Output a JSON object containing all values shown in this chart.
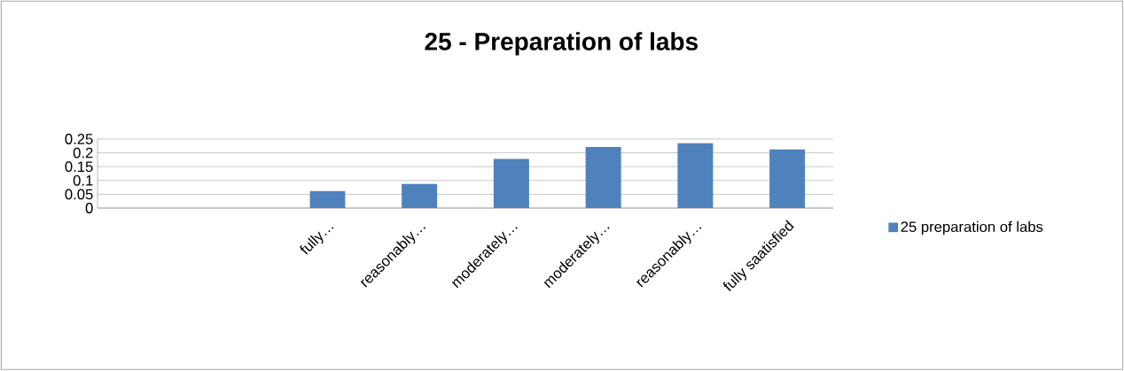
{
  "chart_data": {
    "type": "bar",
    "title": "25 - Preparation of labs",
    "categories": [
      null,
      null,
      "fully…",
      "reasonably…",
      "moderately…",
      "moderately…",
      "reasonably…",
      "fully saatisfied"
    ],
    "series": [
      {
        "name": "25 preparation of labs",
        "color": "#4f81bd",
        "values": [
          null,
          null,
          0.062,
          0.087,
          0.178,
          0.221,
          0.235,
          0.212
        ]
      }
    ],
    "ylim": [
      0,
      0.25
    ],
    "yticks": [
      0,
      0.05,
      0.1,
      0.15,
      0.2,
      0.25
    ],
    "grid": "y",
    "legend": "right"
  }
}
